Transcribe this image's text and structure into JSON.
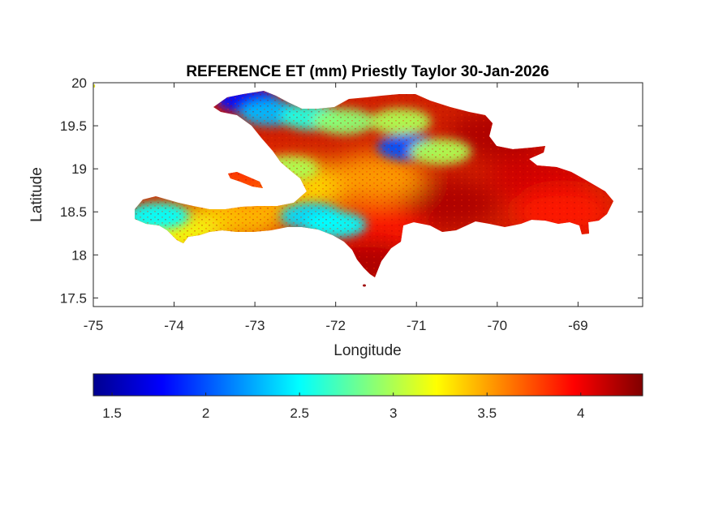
{
  "chart_data": {
    "type": "heatmap",
    "title": "REFERENCE ET (mm) Priestly Taylor 30-Jan-2026",
    "xlabel": "Longitude",
    "ylabel": "Latitude",
    "xlim": [
      -75,
      -68.2
    ],
    "ylim": [
      17.4,
      20
    ],
    "xticks": [
      -75,
      -74,
      -73,
      -72,
      -71,
      -70,
      -69
    ],
    "xtick_labels": [
      "-75",
      "-74",
      "-73",
      "-72",
      "-71",
      "-70",
      "-69"
    ],
    "yticks": [
      17.5,
      18,
      18.5,
      19,
      19.5,
      20
    ],
    "ytick_labels": [
      "17.5",
      "18",
      "18.5",
      "19",
      "19.5",
      "20"
    ],
    "colormap": "jet",
    "clim": [
      1.4,
      4.33
    ],
    "colorbar": {
      "location": "bottom",
      "ticks": [
        1.5,
        2,
        2.5,
        3,
        3.5,
        4
      ],
      "tick_labels": [
        "1.5",
        "2",
        "2.5",
        "3",
        "3.5",
        "4"
      ]
    },
    "grid": false,
    "region_values": [
      {
        "lon": -73.1,
        "lat": 19.8,
        "value": 1.8
      },
      {
        "lon": -72.8,
        "lat": 19.65,
        "value": 2.3
      },
      {
        "lon": -72.3,
        "lat": 19.6,
        "value": 2.6
      },
      {
        "lon": -71.9,
        "lat": 19.55,
        "value": 2.9
      },
      {
        "lon": -71.2,
        "lat": 19.55,
        "value": 3.0
      },
      {
        "lon": -71.1,
        "lat": 19.25,
        "value": 2.0
      },
      {
        "lon": -70.7,
        "lat": 19.2,
        "value": 3.0
      },
      {
        "lon": -70.0,
        "lat": 19.4,
        "value": 4.2
      },
      {
        "lon": -69.5,
        "lat": 18.9,
        "value": 4.1
      },
      {
        "lon": -69.2,
        "lat": 18.5,
        "value": 3.9
      },
      {
        "lon": -70.6,
        "lat": 18.6,
        "value": 4.2
      },
      {
        "lon": -71.5,
        "lat": 18.3,
        "value": 3.9
      },
      {
        "lon": -71.6,
        "lat": 17.9,
        "value": 4.2
      },
      {
        "lon": -72.3,
        "lat": 18.45,
        "value": 2.4
      },
      {
        "lon": -72.0,
        "lat": 18.35,
        "value": 2.5
      },
      {
        "lon": -72.4,
        "lat": 18.8,
        "value": 3.3
      },
      {
        "lon": -72.6,
        "lat": 19.0,
        "value": 3.0
      },
      {
        "lon": -73.2,
        "lat": 18.45,
        "value": 3.4
      },
      {
        "lon": -74.2,
        "lat": 18.45,
        "value": 2.5
      },
      {
        "lon": -74.0,
        "lat": 18.25,
        "value": 3.2
      },
      {
        "lon": -73.0,
        "lat": 18.9,
        "value": 3.8
      },
      {
        "lon": -71.5,
        "lat": 18.9,
        "value": 3.5
      },
      {
        "lon": -75.0,
        "lat": 19.97,
        "value": 3.1
      }
    ]
  }
}
